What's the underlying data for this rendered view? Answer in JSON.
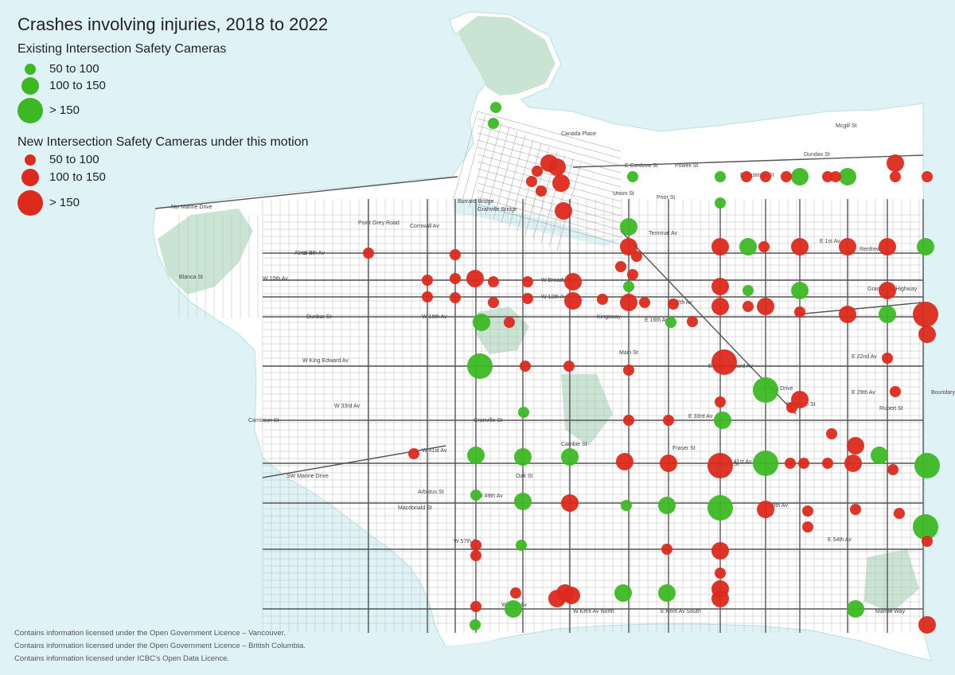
{
  "title": "Crashes involving injuries, 2018 to 2022",
  "legend": {
    "existing_heading": "Existing Intersection Safety Cameras",
    "new_heading": "New Intersection Safety Cameras under this motion",
    "classes": [
      "50 to 100",
      "100 to 150",
      "> 150"
    ]
  },
  "colors": {
    "existing": "#3cb824",
    "new": "#dc2a1c",
    "water": "#dff3f7",
    "park": "#c9e4d3",
    "road": "#555555"
  },
  "credits": [
    "Contains information licensed under the Open Government Licence – Vancouver.",
    "Contains information licensed under the Open Government Licence – British Columbia.",
    "Contains information licensed under ICBC's Open Data Licence."
  ],
  "road_labels": [
    "Nw Marine Drive",
    "Point Grey Road",
    "Cornwall Av",
    "W 4th Av",
    "W 10th Av",
    "W Broadway",
    "W 12th Av",
    "W 16th Av",
    "W King Edward Av",
    "W 33rd Av",
    "W 41st Av",
    "SW Marine Drive",
    "W 49th Av",
    "W 57th Av",
    "W 70th Av",
    "Granville St",
    "Oak St",
    "Cambie St",
    "Main St",
    "Fraser St",
    "Knight St",
    "Victoria Drive",
    "Nanaimo St",
    "Rupert St",
    "Boundary Road",
    "E Hastings St",
    "Powell St",
    "Terminal Av",
    "E 1st Av",
    "Grandview Highway",
    "E King Edward Av",
    "E 41st Av",
    "E 49th Av",
    "E Kent Av South",
    "Marine Way",
    "Kingsway",
    "Prior St",
    "Union St",
    "E Cordova St",
    "Dundas St",
    "Mcgill St",
    "Canada Place",
    "Burrard Bridge",
    "Granville Bridge",
    "E 12th Av",
    "E 16th Av",
    "E 22nd Av",
    "E 29th Av",
    "E 33rd Av",
    "E 54th Av",
    "W Kent Av North",
    "Arbutus St",
    "Macdonald St",
    "Dunbar St",
    "Blanca St",
    "Alma St",
    "Camosun St",
    "Renfrew St"
  ],
  "cameras": {
    "existing": [
      [
        623,
        135,
        1
      ],
      [
        620,
        155,
        1
      ],
      [
        795,
        222,
        1
      ],
      [
        905,
        222,
        1
      ],
      [
        1005,
        222,
        2
      ],
      [
        1065,
        222,
        2
      ],
      [
        905,
        255,
        1
      ],
      [
        790,
        285,
        2
      ],
      [
        940,
        310,
        2
      ],
      [
        1163,
        310,
        2
      ],
      [
        1005,
        365,
        2
      ],
      [
        940,
        365,
        1
      ],
      [
        605,
        405,
        2
      ],
      [
        1115,
        395,
        2
      ],
      [
        843,
        405,
        1
      ],
      [
        790,
        360,
        1
      ],
      [
        603,
        460,
        3
      ],
      [
        962,
        490,
        3
      ],
      [
        658,
        518,
        1
      ],
      [
        908,
        528,
        2
      ],
      [
        598,
        572,
        2
      ],
      [
        657,
        574,
        2
      ],
      [
        716,
        574,
        2
      ],
      [
        962,
        582,
        3
      ],
      [
        1105,
        572,
        2
      ],
      [
        1165,
        585,
        3
      ],
      [
        598,
        622,
        1
      ],
      [
        657,
        630,
        2
      ],
      [
        787,
        635,
        1
      ],
      [
        838,
        635,
        2
      ],
      [
        905,
        638,
        3
      ],
      [
        1163,
        662,
        3
      ],
      [
        655,
        685,
        1
      ],
      [
        783,
        745,
        2
      ],
      [
        838,
        745,
        2
      ],
      [
        645,
        765,
        2
      ],
      [
        1075,
        765,
        2
      ],
      [
        597,
        785,
        1
      ]
    ],
    "new": [
      [
        463,
        318,
        1
      ],
      [
        572,
        320,
        1
      ],
      [
        572,
        350,
        1
      ],
      [
        537,
        352,
        1
      ],
      [
        597,
        350,
        2
      ],
      [
        620,
        354,
        1
      ],
      [
        663,
        354,
        1
      ],
      [
        720,
        354,
        2
      ],
      [
        537,
        373,
        1
      ],
      [
        572,
        374,
        1
      ],
      [
        620,
        380,
        1
      ],
      [
        663,
        375,
        1
      ],
      [
        720,
        378,
        2
      ],
      [
        757,
        376,
        1
      ],
      [
        790,
        380,
        2
      ],
      [
        810,
        380,
        1
      ],
      [
        846,
        382,
        1
      ],
      [
        905,
        360,
        2
      ],
      [
        905,
        385,
        2
      ],
      [
        940,
        385,
        1
      ],
      [
        962,
        385,
        2
      ],
      [
        1005,
        392,
        1
      ],
      [
        1065,
        395,
        2
      ],
      [
        1115,
        365,
        2
      ],
      [
        1163,
        395,
        3
      ],
      [
        1165,
        420,
        2
      ],
      [
        870,
        404,
        1
      ],
      [
        640,
        405,
        1
      ],
      [
        690,
        205,
        2
      ],
      [
        700,
        210,
        2
      ],
      [
        705,
        230,
        2
      ],
      [
        675,
        215,
        1
      ],
      [
        680,
        240,
        1
      ],
      [
        708,
        265,
        2
      ],
      [
        668,
        228,
        1
      ],
      [
        938,
        222,
        1
      ],
      [
        962,
        222,
        1
      ],
      [
        988,
        222,
        1
      ],
      [
        1040,
        222,
        1
      ],
      [
        1050,
        222,
        1
      ],
      [
        1125,
        222,
        1
      ],
      [
        1165,
        222,
        1
      ],
      [
        1125,
        205,
        2
      ],
      [
        905,
        310,
        2
      ],
      [
        960,
        310,
        1
      ],
      [
        1005,
        310,
        2
      ],
      [
        1065,
        310,
        2
      ],
      [
        1115,
        310,
        2
      ],
      [
        790,
        310,
        2
      ],
      [
        800,
        322,
        1
      ],
      [
        780,
        335,
        1
      ],
      [
        795,
        345,
        1
      ],
      [
        910,
        455,
        3
      ],
      [
        660,
        460,
        1
      ],
      [
        715,
        460,
        1
      ],
      [
        790,
        465,
        1
      ],
      [
        1115,
        450,
        1
      ],
      [
        1125,
        492,
        1
      ],
      [
        1005,
        502,
        2
      ],
      [
        995,
        512,
        1
      ],
      [
        905,
        505,
        1
      ],
      [
        790,
        528,
        1
      ],
      [
        840,
        528,
        1
      ],
      [
        1045,
        545,
        1
      ],
      [
        1075,
        560,
        2
      ],
      [
        1072,
        582,
        2
      ],
      [
        993,
        582,
        1
      ],
      [
        1010,
        582,
        1
      ],
      [
        1040,
        582,
        1
      ],
      [
        1122,
        590,
        1
      ],
      [
        785,
        580,
        2
      ],
      [
        840,
        582,
        2
      ],
      [
        905,
        585,
        3
      ],
      [
        520,
        570,
        1
      ],
      [
        716,
        632,
        2
      ],
      [
        962,
        640,
        2
      ],
      [
        1015,
        642,
        1
      ],
      [
        1075,
        640,
        1
      ],
      [
        1130,
        645,
        1
      ],
      [
        1015,
        662,
        1
      ],
      [
        838,
        690,
        1
      ],
      [
        905,
        692,
        2
      ],
      [
        598,
        685,
        1
      ],
      [
        598,
        698,
        1
      ],
      [
        1165,
        680,
        1
      ],
      [
        905,
        720,
        1
      ],
      [
        905,
        740,
        2
      ],
      [
        905,
        752,
        2
      ],
      [
        710,
        745,
        2
      ],
      [
        700,
        752,
        2
      ],
      [
        718,
        748,
        2
      ],
      [
        648,
        745,
        1
      ],
      [
        598,
        762,
        1
      ],
      [
        1165,
        785,
        2
      ]
    ]
  }
}
